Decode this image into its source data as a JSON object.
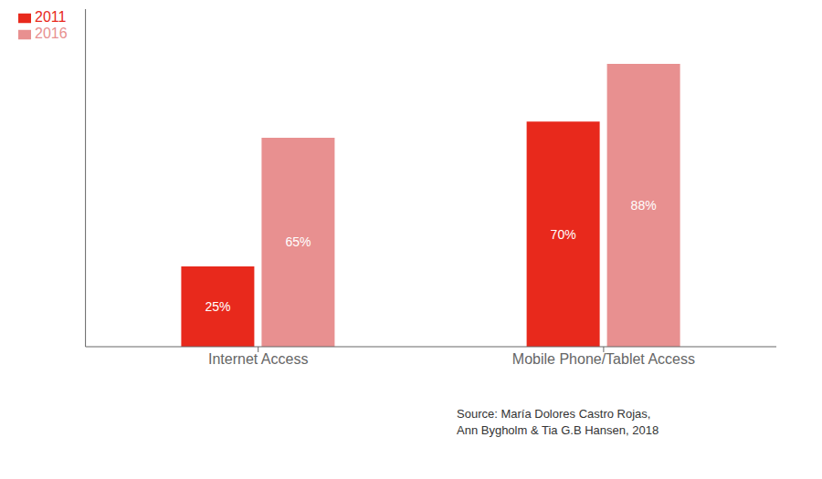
{
  "chart_data": {
    "type": "bar",
    "categories": [
      "Internet Access",
      "Mobile Phone/Tablet Access"
    ],
    "series": [
      {
        "name": "2011",
        "color": "#e8291c",
        "values": [
          25,
          70
        ],
        "value_labels": [
          "25%",
          "70%"
        ]
      },
      {
        "name": "2016",
        "color": "#e89090",
        "values": [
          65,
          88
        ],
        "value_labels": [
          "65%",
          "88%"
        ]
      }
    ],
    "ylim": [
      0,
      105
    ],
    "grid": false,
    "legend": "upper left",
    "data_labels": true,
    "tick_labels": "x",
    "annotations": [
      "Source: María Dolores Castro Rojas,\nAnn Bygholm & Tia G.B Hansen, 2018"
    ]
  }
}
